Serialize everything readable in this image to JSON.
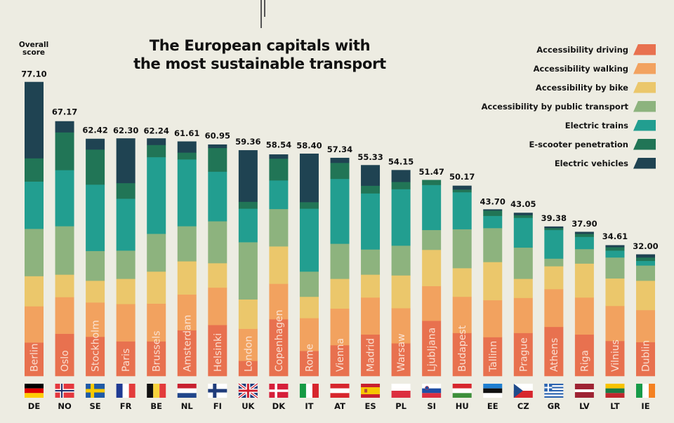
{
  "header": {
    "title_line1": "The European capitals with",
    "title_line2": "the most sustainable transport",
    "overall_label_line1": "Overall",
    "overall_label_line2": "score"
  },
  "colors": {
    "background": "#edece2",
    "driving": "#e8714f",
    "walking": "#f2a25f",
    "bike": "#ebc76b",
    "public_transport": "#8db37e",
    "electric_trains": "#229e90",
    "escooter": "#217556",
    "electric_vehicles": "#1f4352"
  },
  "legend": {
    "items": [
      {
        "key": "driving",
        "label": "Accessibility driving",
        "color": "#e8714f"
      },
      {
        "key": "walking",
        "label": "Accessibility walking",
        "color": "#f2a25f"
      },
      {
        "key": "bike",
        "label": "Accessibility by bike",
        "color": "#ebc76b"
      },
      {
        "key": "public_transport",
        "label": "Accessibility by public transport",
        "color": "#8db37e"
      },
      {
        "key": "electric_trains",
        "label": "Electric trains",
        "color": "#229e90"
      },
      {
        "key": "escooter",
        "label": "E-scooter penetration",
        "color": "#217556"
      },
      {
        "key": "electric_vehicles",
        "label": "Electric vehicles",
        "color": "#1f4352"
      }
    ]
  },
  "chart_data": {
    "type": "bar",
    "stacked": true,
    "title": "The European capitals with the most sustainable transport",
    "xlabel": "",
    "ylabel": "Overall score",
    "ylim": [
      0,
      80
    ],
    "grid": false,
    "legend_position": "top-right",
    "categories": [
      "Berlin",
      "Oslo",
      "Stockholm",
      "Paris",
      "Brussels",
      "Amsterdam",
      "Helsinki",
      "London",
      "Copenhagen",
      "Rome",
      "Vienna",
      "Madrid",
      "Warsaw",
      "Ljubljana",
      "Budapest",
      "Tallinn",
      "Prague",
      "Athens",
      "Riga",
      "Vilnius",
      "Dublin"
    ],
    "country_codes": [
      "DE",
      "NO",
      "SE",
      "FR",
      "BE",
      "NL",
      "FI",
      "UK",
      "DK",
      "IT",
      "AT",
      "ES",
      "PL",
      "SI",
      "HU",
      "EE",
      "CZ",
      "GR",
      "LV",
      "LT",
      "IE"
    ],
    "totals": [
      77.1,
      67.17,
      62.42,
      62.3,
      62.24,
      61.61,
      60.95,
      59.36,
      58.54,
      58.4,
      57.34,
      55.33,
      54.15,
      51.47,
      50.17,
      43.7,
      43.05,
      39.38,
      37.9,
      34.61,
      32.0
    ],
    "total_labels": [
      "77.10",
      "67.17",
      "62.42",
      "62.30",
      "62.24",
      "61.61",
      "60.95",
      "59.36",
      "58.54",
      "58.40",
      "57.34",
      "55.33",
      "54.15",
      "51.47",
      "50.17",
      "43.70",
      "43.05",
      "39.38",
      "37.90",
      "34.61",
      "32.00"
    ],
    "series": [
      {
        "name": "Accessibility driving",
        "key": "driving",
        "values": [
          8.8,
          11.1,
          10.3,
          9.1,
          9.1,
          12.0,
          13.4,
          4.0,
          14.9,
          6.6,
          8.1,
          10.9,
          8.6,
          14.5,
          11.3,
          10.2,
          11.3,
          12.9,
          10.9,
          9.2,
          8.9
        ]
      },
      {
        "name": "Accessibility walking",
        "key": "walking",
        "values": [
          9.5,
          9.6,
          9.0,
          9.8,
          9.9,
          9.4,
          9.8,
          8.4,
          9.3,
          8.6,
          9.6,
          9.7,
          9.2,
          9.1,
          9.5,
          9.7,
          9.2,
          9.9,
          9.7,
          9.2,
          8.4
        ]
      },
      {
        "name": "Accessibility by bike",
        "key": "bike",
        "values": [
          7.9,
          5.9,
          5.7,
          6.6,
          8.4,
          8.7,
          6.4,
          7.7,
          9.8,
          5.6,
          7.8,
          6.0,
          8.6,
          9.5,
          7.5,
          10.0,
          5.0,
          6.0,
          8.9,
          7.2,
          7.7
        ]
      },
      {
        "name": "Accessibility by public transport",
        "key": "public_transport",
        "values": [
          12.4,
          12.7,
          7.8,
          7.4,
          9.9,
          9.2,
          11.0,
          15.0,
          9.8,
          6.6,
          9.2,
          6.6,
          7.8,
          5.2,
          10.2,
          8.9,
          8.2,
          2.0,
          3.8,
          5.5,
          4.0
        ]
      },
      {
        "name": "Electric trains",
        "key": "electric_trains",
        "values": [
          12.4,
          14.7,
          17.4,
          13.6,
          20.1,
          17.5,
          13.0,
          8.8,
          7.5,
          16.5,
          17.0,
          14.7,
          14.8,
          11.8,
          9.7,
          3.2,
          7.8,
          7.5,
          3.2,
          1.8,
          1.2
        ]
      },
      {
        "name": "E-scooter penetration",
        "key": "escooter",
        "values": [
          6.1,
          9.9,
          9.2,
          4.1,
          3.2,
          1.8,
          6.2,
          1.8,
          5.7,
          1.7,
          4.2,
          2.0,
          1.9,
          1.3,
          0.7,
          1.4,
          0.7,
          0.5,
          0.8,
          0.9,
          0.9
        ]
      },
      {
        "name": "Electric vehicles",
        "key": "electric_vehicles",
        "values": [
          20.0,
          2.9,
          2.8,
          11.7,
          1.7,
          2.9,
          0.9,
          13.5,
          1.1,
          12.7,
          1.3,
          5.4,
          3.1,
          0.0,
          1.0,
          0.3,
          0.6,
          0.4,
          0.5,
          0.5,
          0.8
        ]
      }
    ]
  }
}
